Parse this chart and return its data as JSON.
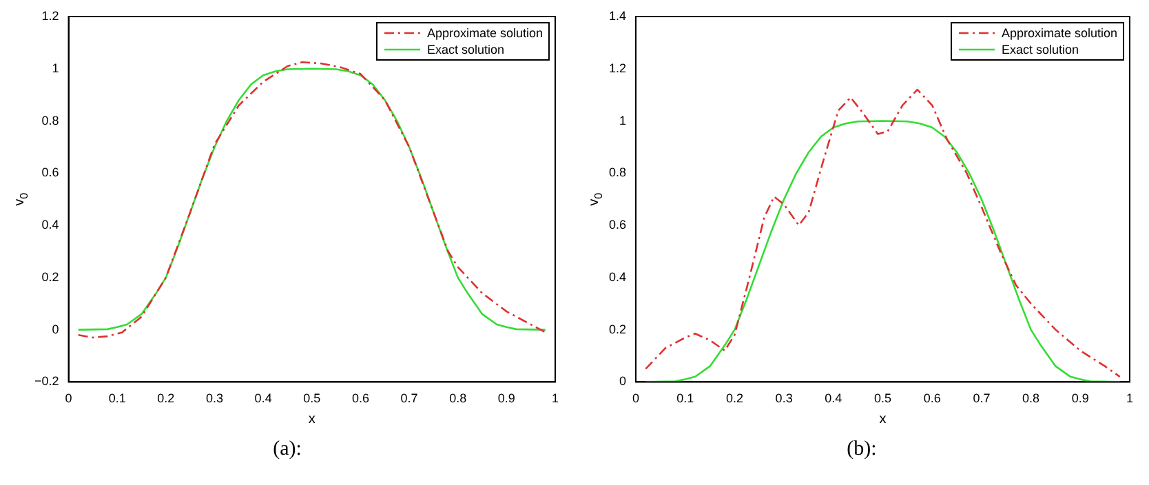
{
  "chart_data": [
    {
      "type": "line",
      "xlabel": "x",
      "ylabel": "v$_{0}$",
      "annotations": [
        "(a):"
      ],
      "xlim": [
        0,
        1
      ],
      "xticks": [
        0,
        0.1,
        0.2,
        0.3,
        0.4,
        0.5,
        0.6,
        0.7,
        0.8,
        0.9,
        1
      ],
      "ylim": [
        -0.2,
        1.2
      ],
      "yticks": [
        -0.2,
        0,
        0.2,
        0.4,
        0.6,
        0.8,
        1,
        1.2
      ],
      "grid": false,
      "legend": "top right",
      "marker": "none",
      "series": [
        {
          "name": "Approximate solution",
          "color": "#e03030",
          "line_style": "dashed",
          "x": [
            0.02,
            0.05,
            0.08,
            0.11,
            0.15,
            0.2,
            0.25,
            0.3,
            0.35,
            0.4,
            0.45,
            0.48,
            0.52,
            0.56,
            0.6,
            0.65,
            0.7,
            0.75,
            0.78,
            0.8,
            0.85,
            0.9,
            0.95,
            0.985
          ],
          "values": [
            -0.02,
            -0.03,
            -0.025,
            -0.01,
            0.05,
            0.2,
            0.45,
            0.71,
            0.86,
            0.95,
            1.01,
            1.025,
            1.02,
            1.005,
            0.98,
            0.88,
            0.7,
            0.45,
            0.3,
            0.24,
            0.14,
            0.07,
            0.02,
            -0.015
          ]
        },
        {
          "name": "Exact solution",
          "color": "#33dd33",
          "line_style": "solid",
          "x": [
            0.02,
            0.08,
            0.1,
            0.12,
            0.15,
            0.18,
            0.2,
            0.225,
            0.25,
            0.275,
            0.3,
            0.325,
            0.35,
            0.375,
            0.4,
            0.425,
            0.45,
            0.5,
            0.55,
            0.575,
            0.6,
            0.625,
            0.65,
            0.675,
            0.7,
            0.725,
            0.75,
            0.775,
            0.8,
            0.82,
            0.85,
            0.88,
            0.9,
            0.92,
            0.98
          ],
          "values": [
            0,
            0.002,
            0.01,
            0.02,
            0.06,
            0.14,
            0.2,
            0.32,
            0.45,
            0.58,
            0.7,
            0.8,
            0.88,
            0.94,
            0.975,
            0.99,
            0.998,
            1,
            0.998,
            0.99,
            0.975,
            0.94,
            0.88,
            0.8,
            0.7,
            0.58,
            0.45,
            0.32,
            0.2,
            0.14,
            0.06,
            0.02,
            0.01,
            0.002,
            0
          ]
        }
      ]
    },
    {
      "type": "line",
      "xlabel": "x",
      "ylabel": "v$_{0}$",
      "annotations": [
        "(b):"
      ],
      "xlim": [
        0,
        1
      ],
      "xticks": [
        0,
        0.1,
        0.2,
        0.3,
        0.4,
        0.5,
        0.6,
        0.7,
        0.8,
        0.9,
        1
      ],
      "ylim": [
        0,
        1.4
      ],
      "yticks": [
        0,
        0.2,
        0.4,
        0.6,
        0.8,
        1,
        1.2,
        1.4
      ],
      "grid": false,
      "legend": "top right",
      "marker": "none",
      "series": [
        {
          "name": "Approximate solution",
          "color": "#e03030",
          "line_style": "dashed",
          "x": [
            0.02,
            0.06,
            0.1,
            0.12,
            0.15,
            0.18,
            0.2,
            0.23,
            0.26,
            0.28,
            0.3,
            0.33,
            0.35,
            0.38,
            0.41,
            0.435,
            0.46,
            0.49,
            0.51,
            0.54,
            0.57,
            0.6,
            0.63,
            0.67,
            0.7,
            0.74,
            0.77,
            0.8,
            0.85,
            0.9,
            0.95,
            0.98
          ],
          "values": [
            0.05,
            0.13,
            0.17,
            0.185,
            0.16,
            0.12,
            0.18,
            0.4,
            0.63,
            0.71,
            0.68,
            0.6,
            0.65,
            0.85,
            1.04,
            1.09,
            1.03,
            0.95,
            0.96,
            1.06,
            1.12,
            1.06,
            0.93,
            0.8,
            0.67,
            0.49,
            0.37,
            0.3,
            0.2,
            0.12,
            0.06,
            0.02
          ]
        },
        {
          "name": "Exact solution",
          "color": "#33dd33",
          "line_style": "solid",
          "x": [
            0.02,
            0.08,
            0.1,
            0.12,
            0.15,
            0.18,
            0.2,
            0.225,
            0.25,
            0.275,
            0.3,
            0.325,
            0.35,
            0.375,
            0.4,
            0.425,
            0.45,
            0.5,
            0.55,
            0.575,
            0.6,
            0.625,
            0.65,
            0.675,
            0.7,
            0.725,
            0.75,
            0.775,
            0.8,
            0.82,
            0.85,
            0.88,
            0.9,
            0.92,
            0.98
          ],
          "values": [
            0,
            0.002,
            0.01,
            0.02,
            0.06,
            0.14,
            0.2,
            0.32,
            0.45,
            0.58,
            0.7,
            0.8,
            0.88,
            0.94,
            0.975,
            0.99,
            0.998,
            1,
            0.998,
            0.99,
            0.975,
            0.94,
            0.88,
            0.8,
            0.7,
            0.58,
            0.45,
            0.32,
            0.2,
            0.14,
            0.06,
            0.02,
            0.01,
            0.002,
            0
          ]
        }
      ]
    }
  ]
}
